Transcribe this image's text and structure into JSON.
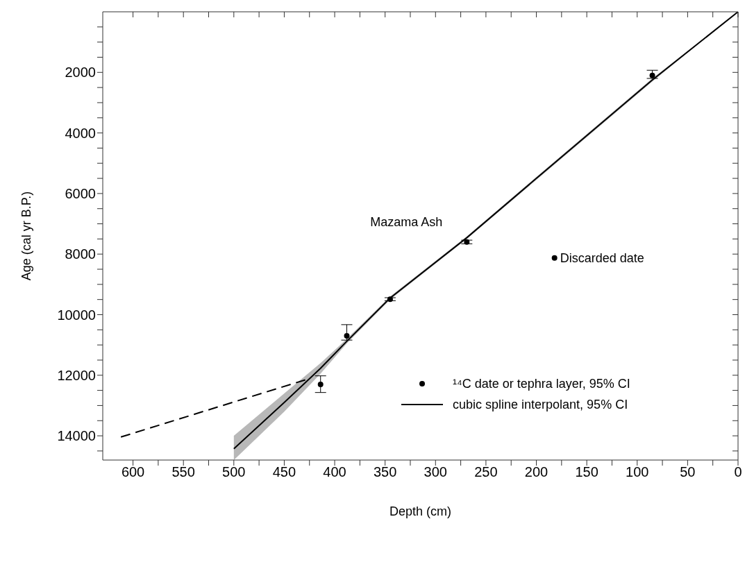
{
  "chart_data": {
    "type": "scatter",
    "xlabel": "Depth (cm)",
    "ylabel": "Age (cal yr B.P.)",
    "xlim": [
      630,
      0
    ],
    "ylim": [
      14800,
      0
    ],
    "xticks": [
      600,
      {
        "value": 575,
        "label": null
      },
      550,
      {
        "value": 525,
        "label": null
      },
      500,
      {
        "value": 475,
        "label": null
      },
      450,
      {
        "value": 425,
        "label": null
      },
      400,
      {
        "value": 375,
        "label": null
      },
      350,
      {
        "value": 325,
        "label": null
      },
      300,
      {
        "value": 275,
        "label": null
      },
      250,
      {
        "value": 225,
        "label": null
      },
      200,
      {
        "value": 175,
        "label": null
      },
      150,
      {
        "value": 125,
        "label": null
      },
      100,
      {
        "value": 75,
        "label": null
      },
      50,
      {
        "value": 25,
        "label": null
      },
      0
    ],
    "yticks": [
      {
        "value": 500,
        "label": null
      },
      {
        "value": 1000,
        "label": null
      },
      {
        "value": 1500,
        "label": null
      },
      2000,
      {
        "value": 2500,
        "label": null
      },
      {
        "value": 3000,
        "label": null
      },
      {
        "value": 3500,
        "label": null
      },
      4000,
      {
        "value": 4500,
        "label": null
      },
      {
        "value": 5000,
        "label": null
      },
      {
        "value": 5500,
        "label": null
      },
      6000,
      {
        "value": 6500,
        "label": null
      },
      {
        "value": 7000,
        "label": null
      },
      {
        "value": 7500,
        "label": null
      },
      8000,
      {
        "value": 8500,
        "label": null
      },
      {
        "value": 9000,
        "label": null
      },
      {
        "value": 9500,
        "label": null
      },
      10000,
      {
        "value": 10500,
        "label": null
      },
      {
        "value": 11000,
        "label": null
      },
      {
        "value": 11500,
        "label": null
      },
      12000,
      {
        "value": 12500,
        "label": null
      },
      {
        "value": 13000,
        "label": null
      },
      {
        "value": 13500,
        "label": null
      },
      14000,
      {
        "value": 14500,
        "label": null
      }
    ],
    "grid": false,
    "legend": "bottom right",
    "annotations": [
      {
        "text": "Mazama Ash",
        "x": 269,
        "y": 7600
      }
    ],
    "series": [
      {
        "name": "¹⁴C  date or tephra layer, 95% CI",
        "color": "#000000",
        "marker": "circle",
        "x": [
          85,
          269,
          345,
          388,
          414
        ],
        "values": [
          2100,
          7600,
          9490,
          10700,
          12300
        ],
        "errors": [
          [
            1930,
            2200
          ],
          [
            7540,
            7660
          ],
          [
            9440,
            9540
          ],
          [
            10330,
            10840
          ],
          [
            12020,
            12570
          ]
        ]
      },
      {
        "name": "Discarded date",
        "color": "#000000",
        "marker": "circle",
        "x": [
          182
        ],
        "values": [
          8130
        ]
      },
      {
        "type": "line",
        "name": "cubic spline interpolant, 95% CI",
        "color": "#000000",
        "x": [
          0,
          85,
          200,
          269,
          345,
          388,
          414,
          450,
          500
        ],
        "values": [
          0,
          2250,
          5500,
          7460,
          9450,
          10880,
          11770,
          12900,
          14430
        ],
        "lower": [
          0,
          2200,
          5450,
          7420,
          9400,
          10800,
          11600,
          12600,
          14000
        ],
        "upper": [
          0,
          2300,
          5550,
          7500,
          9500,
          10950,
          11950,
          13200,
          14800
        ]
      },
      {
        "type": "line",
        "color": "#000000",
        "line_style": "dashed",
        "x": [
          612,
          428
        ],
        "values": [
          14040,
          12140
        ]
      }
    ]
  }
}
